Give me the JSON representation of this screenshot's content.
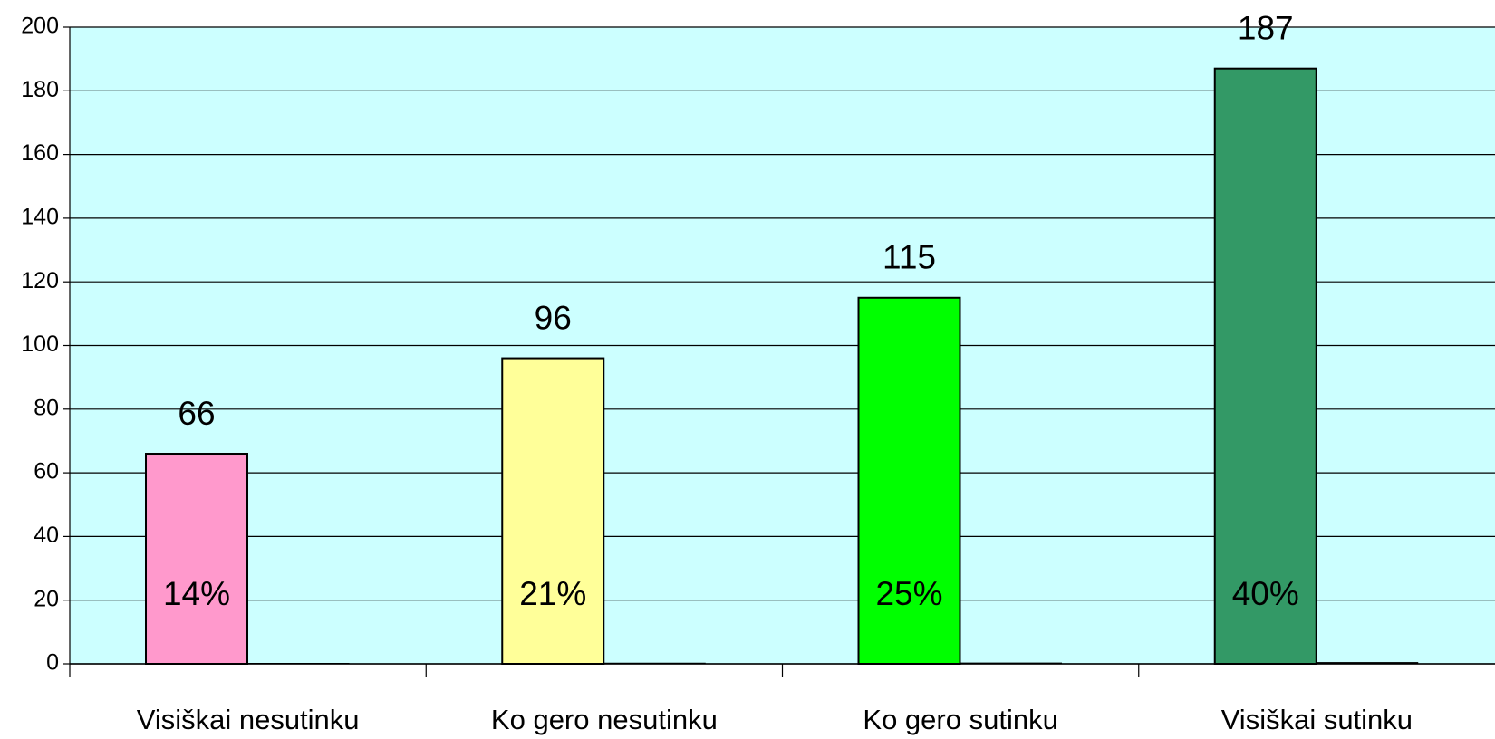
{
  "chart_data": {
    "type": "bar",
    "categories": [
      "Visiškai nesutinku",
      "Ko gero nesutinku",
      "Ko gero sutinku",
      "Visiškai sutinku"
    ],
    "series": [
      {
        "values": [
          66,
          96,
          115,
          187
        ],
        "colors": [
          "#ff99cc",
          "#ffff99",
          "#00ff00",
          "#339966"
        ]
      },
      {
        "values": [
          0.14,
          0.21,
          0.25,
          0.4
        ],
        "value_labels": [
          "14%",
          "21%",
          "25%",
          "40%"
        ],
        "color": "#000000"
      }
    ],
    "ylim": [
      0,
      200
    ],
    "yticks": [
      0,
      20,
      40,
      60,
      80,
      100,
      120,
      140,
      160,
      180,
      200
    ],
    "grid": true,
    "background": "#ccffff"
  }
}
